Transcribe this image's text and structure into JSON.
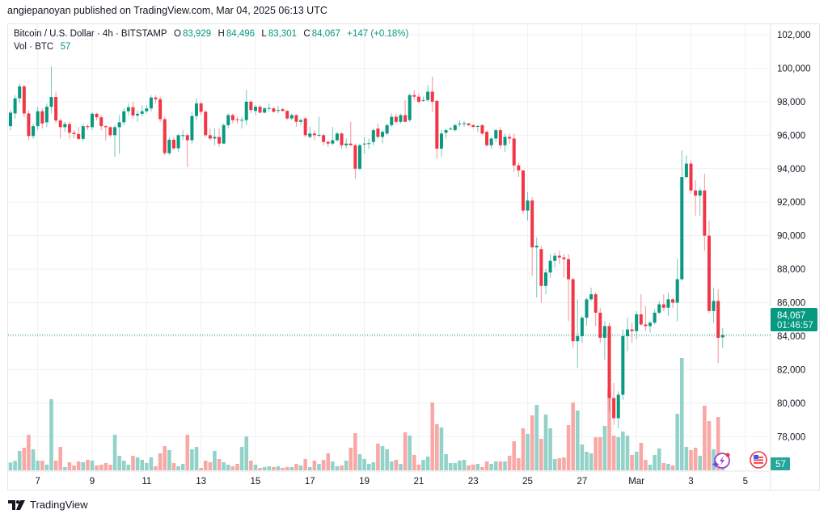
{
  "header": {
    "publish_line": "angiepanoyan published on TradingView.com, Mar 04, 2025 06:13 UTC"
  },
  "legend": {
    "symbol": "Bitcoin / U.S. Dollar · 4h · BITSTAMP",
    "o_label": "O",
    "o": "83,929",
    "h_label": "H",
    "h": "84,496",
    "l_label": "L",
    "l": "83,301",
    "c_label": "C",
    "c": "84,067",
    "change": "+147 (+0.18%)",
    "vol_label": "Vol · BTC",
    "vol": "57"
  },
  "price_tag": {
    "price": "84,067",
    "countdown": "01:46:57"
  },
  "volume_tag": "57",
  "footer": {
    "brand": "TradingView"
  },
  "colors": {
    "up": "#089981",
    "down": "#f23645",
    "up_vol": "#92d2c8",
    "down_vol": "#f8a9a6",
    "grid": "#f0f1f3"
  },
  "icons": [
    "lightning-sparkle-icon",
    "us-flag-icon",
    "tradingview-logo-icon"
  ],
  "chart_data": {
    "type": "candlestick",
    "title": "Bitcoin / U.S. Dollar · 4h · BITSTAMP",
    "interval": "4h",
    "x_start": "Feb 6 2025 00:00 UTC",
    "x_tick_labels": [
      "7",
      "9",
      "11",
      "13",
      "15",
      "17",
      "19",
      "21",
      "23",
      "25",
      "27",
      "Mar",
      "3",
      "5"
    ],
    "x_tick_day_offsets": [
      1,
      3,
      5,
      7,
      9,
      11,
      13,
      15,
      17,
      19,
      21,
      23,
      25,
      27
    ],
    "y_tick_labels": [
      "102,000",
      "100,000",
      "98,000",
      "96,000",
      "94,000",
      "92,000",
      "90,000",
      "88,000",
      "86,000",
      "84,000",
      "82,000",
      "80,000",
      "78,000"
    ],
    "y_ticks": [
      102000,
      100000,
      98000,
      96000,
      94000,
      92000,
      90000,
      88000,
      86000,
      84000,
      82000,
      80000,
      78000
    ],
    "ylim": [
      76300,
      102800
    ],
    "last_price": 84067,
    "volume_unit": "BTC",
    "fields": [
      "open",
      "high",
      "low",
      "close",
      "volume"
    ],
    "candles": [
      [
        96540,
        97500,
        96300,
        97350,
        213
      ],
      [
        97300,
        98400,
        97000,
        98200,
        257
      ],
      [
        98200,
        99100,
        97900,
        98920,
        528
      ],
      [
        98920,
        99000,
        97100,
        97300,
        616
      ],
      [
        97300,
        97500,
        95700,
        95950,
        968
      ],
      [
        95950,
        96700,
        95800,
        96540,
        572
      ],
      [
        96540,
        97700,
        96300,
        97430,
        264
      ],
      [
        97430,
        97600,
        96400,
        96700,
        264
      ],
      [
        96770,
        97900,
        96500,
        97700,
        154
      ],
      [
        97700,
        100100,
        97300,
        98280,
        1936
      ],
      [
        98280,
        98600,
        96700,
        96880,
        264
      ],
      [
        96880,
        97000,
        95800,
        96480,
        638
      ],
      [
        96480,
        96800,
        96200,
        96670,
        88
      ],
      [
        96670,
        96800,
        95800,
        96150,
        220
      ],
      [
        96150,
        96300,
        95800,
        96070,
        132
      ],
      [
        96070,
        96500,
        95700,
        95780,
        242
      ],
      [
        95780,
        96700,
        95600,
        96540,
        220
      ],
      [
        96540,
        96650,
        96300,
        96480,
        286
      ],
      [
        96480,
        97400,
        96300,
        97280,
        264
      ],
      [
        97280,
        97350,
        96900,
        97070,
        132
      ],
      [
        97070,
        97200,
        96300,
        96540,
        154
      ],
      [
        96540,
        96600,
        95700,
        96480,
        198
      ],
      [
        96480,
        96550,
        95900,
        96000,
        154
      ],
      [
        96000,
        96600,
        94700,
        96480,
        968
      ],
      [
        96480,
        97200,
        94900,
        96770,
        396
      ],
      [
        96770,
        97600,
        96600,
        97430,
        264
      ],
      [
        97430,
        97900,
        97200,
        97670,
        154
      ],
      [
        97670,
        98000,
        97000,
        97180,
        396
      ],
      [
        97180,
        97500,
        96800,
        97280,
        352
      ],
      [
        97280,
        97800,
        97100,
        97430,
        286
      ],
      [
        97430,
        97800,
        97300,
        97600,
        198
      ],
      [
        97600,
        98400,
        97400,
        98250,
        352
      ],
      [
        98250,
        98400,
        97900,
        98150,
        110
      ],
      [
        98150,
        98300,
        96800,
        96960,
        462
      ],
      [
        96960,
        97100,
        94800,
        94930,
        660
      ],
      [
        94930,
        95900,
        94800,
        95730,
        550
      ],
      [
        95730,
        95900,
        95100,
        95220,
        198
      ],
      [
        95220,
        96100,
        95000,
        96000,
        110
      ],
      [
        96000,
        96300,
        95700,
        96000,
        176
      ],
      [
        96000,
        96100,
        94100,
        95700,
        968
      ],
      [
        95700,
        97400,
        95500,
        97150,
        572
      ],
      [
        97150,
        98200,
        96900,
        97900,
        638
      ],
      [
        97900,
        98000,
        97200,
        97400,
        66
      ],
      [
        97400,
        97500,
        95900,
        96000,
        264
      ],
      [
        96000,
        96400,
        95700,
        95800,
        220
      ],
      [
        95800,
        96400,
        95400,
        95900,
        528
      ],
      [
        95900,
        96400,
        95300,
        95500,
        308
      ],
      [
        95500,
        96700,
        95500,
        96600,
        220
      ],
      [
        96600,
        97300,
        96400,
        97200,
        154
      ],
      [
        97200,
        97300,
        96700,
        96900,
        110
      ],
      [
        96950,
        97100,
        96700,
        96900,
        176
      ],
      [
        96900,
        97100,
        96400,
        96920,
        638
      ],
      [
        96900,
        98700,
        96600,
        98000,
        924
      ],
      [
        98000,
        98100,
        97300,
        97500,
        264
      ],
      [
        97450,
        97800,
        97200,
        97700,
        154
      ],
      [
        97700,
        97800,
        97300,
        97350,
        66
      ],
      [
        97350,
        97700,
        97300,
        97600,
        88
      ],
      [
        97580,
        97900,
        97400,
        97620,
        110
      ],
      [
        97600,
        97700,
        97350,
        97400,
        88
      ],
      [
        97450,
        97750,
        97300,
        97500,
        110
      ],
      [
        97550,
        97650,
        97400,
        97450,
        66
      ],
      [
        97450,
        97500,
        96900,
        97000,
        88
      ],
      [
        97000,
        97300,
        96900,
        97200,
        88
      ],
      [
        97200,
        97250,
        96500,
        96800,
        176
      ],
      [
        96800,
        97000,
        96600,
        96900,
        132
      ],
      [
        97000,
        97100,
        95900,
        96000,
        308
      ],
      [
        95900,
        96500,
        95800,
        96100,
        88
      ],
      [
        96100,
        96300,
        95700,
        96000,
        264
      ],
      [
        96000,
        97100,
        95900,
        96020,
        176
      ],
      [
        96000,
        96100,
        95400,
        95600,
        286
      ],
      [
        95600,
        95700,
        95300,
        95500,
        462
      ],
      [
        95500,
        96500,
        95400,
        95700,
        242
      ],
      [
        95700,
        96200,
        95600,
        96100,
        110
      ],
      [
        96100,
        96200,
        95200,
        95400,
        132
      ],
      [
        95400,
        95800,
        95200,
        95500,
        264
      ],
      [
        95500,
        96800,
        95400,
        95400,
        616
      ],
      [
        95400,
        95500,
        93400,
        94000,
        1012
      ],
      [
        94000,
        95500,
        93900,
        95400,
        440
      ],
      [
        95450,
        95900,
        94900,
        95500,
        308
      ],
      [
        95500,
        95800,
        95200,
        95520,
        176
      ],
      [
        95600,
        96400,
        95400,
        96300,
        220
      ],
      [
        96400,
        96700,
        95800,
        95900,
        726
      ],
      [
        95900,
        96300,
        95500,
        96200,
        660
      ],
      [
        96100,
        96700,
        96000,
        96600,
        572
      ],
      [
        96600,
        97300,
        96500,
        97100,
        242
      ],
      [
        97100,
        97300,
        96700,
        96800,
        286
      ],
      [
        96800,
        97300,
        96700,
        97200,
        176
      ],
      [
        97200,
        98100,
        96800,
        96800,
        1034
      ],
      [
        96900,
        98500,
        96800,
        98400,
        946
      ],
      [
        98400,
        98700,
        98100,
        98300,
        418
      ],
      [
        98300,
        98500,
        97900,
        98000,
        154
      ],
      [
        98050,
        98300,
        98000,
        98100,
        286
      ],
      [
        98100,
        99000,
        98000,
        98600,
        374
      ],
      [
        98600,
        99500,
        97400,
        98000,
        1848
      ],
      [
        98050,
        98100,
        94600,
        95200,
        1254
      ],
      [
        95200,
        96300,
        94700,
        96100,
        1166
      ],
      [
        96150,
        96400,
        95800,
        96300,
        440
      ],
      [
        96350,
        96500,
        96300,
        96400,
        198
      ],
      [
        96300,
        96700,
        96200,
        96600,
        198
      ],
      [
        96650,
        96900,
        96500,
        96700,
        264
      ],
      [
        96700,
        96850,
        96500,
        96720,
        286
      ],
      [
        96700,
        96750,
        96550,
        96600,
        132
      ],
      [
        96600,
        96650,
        96400,
        96500,
        154
      ],
      [
        96500,
        96600,
        96200,
        96550,
        176
      ],
      [
        96600,
        96650,
        96000,
        96100,
        88
      ],
      [
        96200,
        96300,
        95300,
        95400,
        242
      ],
      [
        95400,
        95900,
        95200,
        95800,
        176
      ],
      [
        95800,
        96400,
        95600,
        96300,
        242
      ],
      [
        96300,
        96500,
        95200,
        95400,
        242
      ],
      [
        95400,
        96100,
        95000,
        95900,
        242
      ],
      [
        95900,
        96100,
        95500,
        95800,
        396
      ],
      [
        95800,
        96100,
        93800,
        94200,
        792
      ],
      [
        94200,
        94400,
        93500,
        93900,
        330
      ],
      [
        93900,
        93900,
        91300,
        91500,
        1144
      ],
      [
        91500,
        92600,
        90900,
        92100,
        990
      ],
      [
        92100,
        92300,
        87600,
        89300,
        1496
      ],
      [
        89300,
        89900,
        86300,
        89400,
        1782
      ],
      [
        89200,
        89400,
        86000,
        87000,
        858
      ],
      [
        87000,
        88000,
        86500,
        87800,
        1518
      ],
      [
        87800,
        88900,
        87500,
        88500,
        1144
      ],
      [
        88500,
        89000,
        88100,
        88800,
        308
      ],
      [
        88800,
        89100,
        88300,
        88700,
        330
      ],
      [
        88700,
        88900,
        87500,
        88600,
        352
      ],
      [
        88600,
        88900,
        84900,
        87400,
        1232
      ],
      [
        87400,
        87500,
        83300,
        83700,
        1848
      ],
      [
        83700,
        86200,
        82100,
        84000,
        1628
      ],
      [
        84000,
        85200,
        83600,
        85100,
        704
      ],
      [
        85100,
        86300,
        84600,
        86200,
        506
      ],
      [
        86200,
        86900,
        86100,
        86500,
        462
      ],
      [
        86500,
        86600,
        84600,
        85400,
        902
      ],
      [
        85400,
        85700,
        83600,
        83900,
        902
      ],
      [
        83900,
        84900,
        82600,
        84600,
        1210
      ],
      [
        84600,
        84800,
        79500,
        80300,
        2200
      ],
      [
        80300,
        81200,
        78700,
        79100,
        946
      ],
      [
        79100,
        80700,
        78500,
        80500,
        902
      ],
      [
        80500,
        84400,
        80200,
        84000,
        1056
      ],
      [
        84000,
        85100,
        83100,
        84400,
        946
      ],
      [
        84400,
        84800,
        83600,
        84300,
        418
      ],
      [
        84300,
        85500,
        83800,
        85300,
        506
      ],
      [
        85300,
        86500,
        84600,
        84700,
        748
      ],
      [
        84700,
        85800,
        84300,
        84600,
        286
      ],
      [
        84600,
        84900,
        84200,
        84800,
        154
      ],
      [
        84800,
        85600,
        84700,
        85400,
        418
      ],
      [
        85400,
        86100,
        85300,
        85900,
        594
      ],
      [
        85900,
        86500,
        85500,
        85700,
        198
      ],
      [
        85700,
        86600,
        85200,
        86200,
        176
      ],
      [
        86200,
        86300,
        85700,
        86000,
        132
      ],
      [
        86000,
        88600,
        84900,
        87400,
        1540
      ],
      [
        87400,
        95100,
        87300,
        93500,
        3058
      ],
      [
        93500,
        94800,
        93400,
        94300,
        638
      ],
      [
        94300,
        94500,
        92500,
        92700,
        550
      ],
      [
        92700,
        93300,
        91200,
        92400,
        616
      ],
      [
        92400,
        92900,
        91200,
        92700,
        396
      ],
      [
        92700,
        93700,
        89100,
        90000,
        1760
      ],
      [
        90000,
        90900,
        85400,
        85500,
        1342
      ],
      [
        85500,
        86900,
        84800,
        86100,
        572
      ],
      [
        86100,
        86800,
        82400,
        83900,
        1452
      ],
      [
        83929,
        84496,
        83301,
        84067,
        57
      ]
    ]
  }
}
